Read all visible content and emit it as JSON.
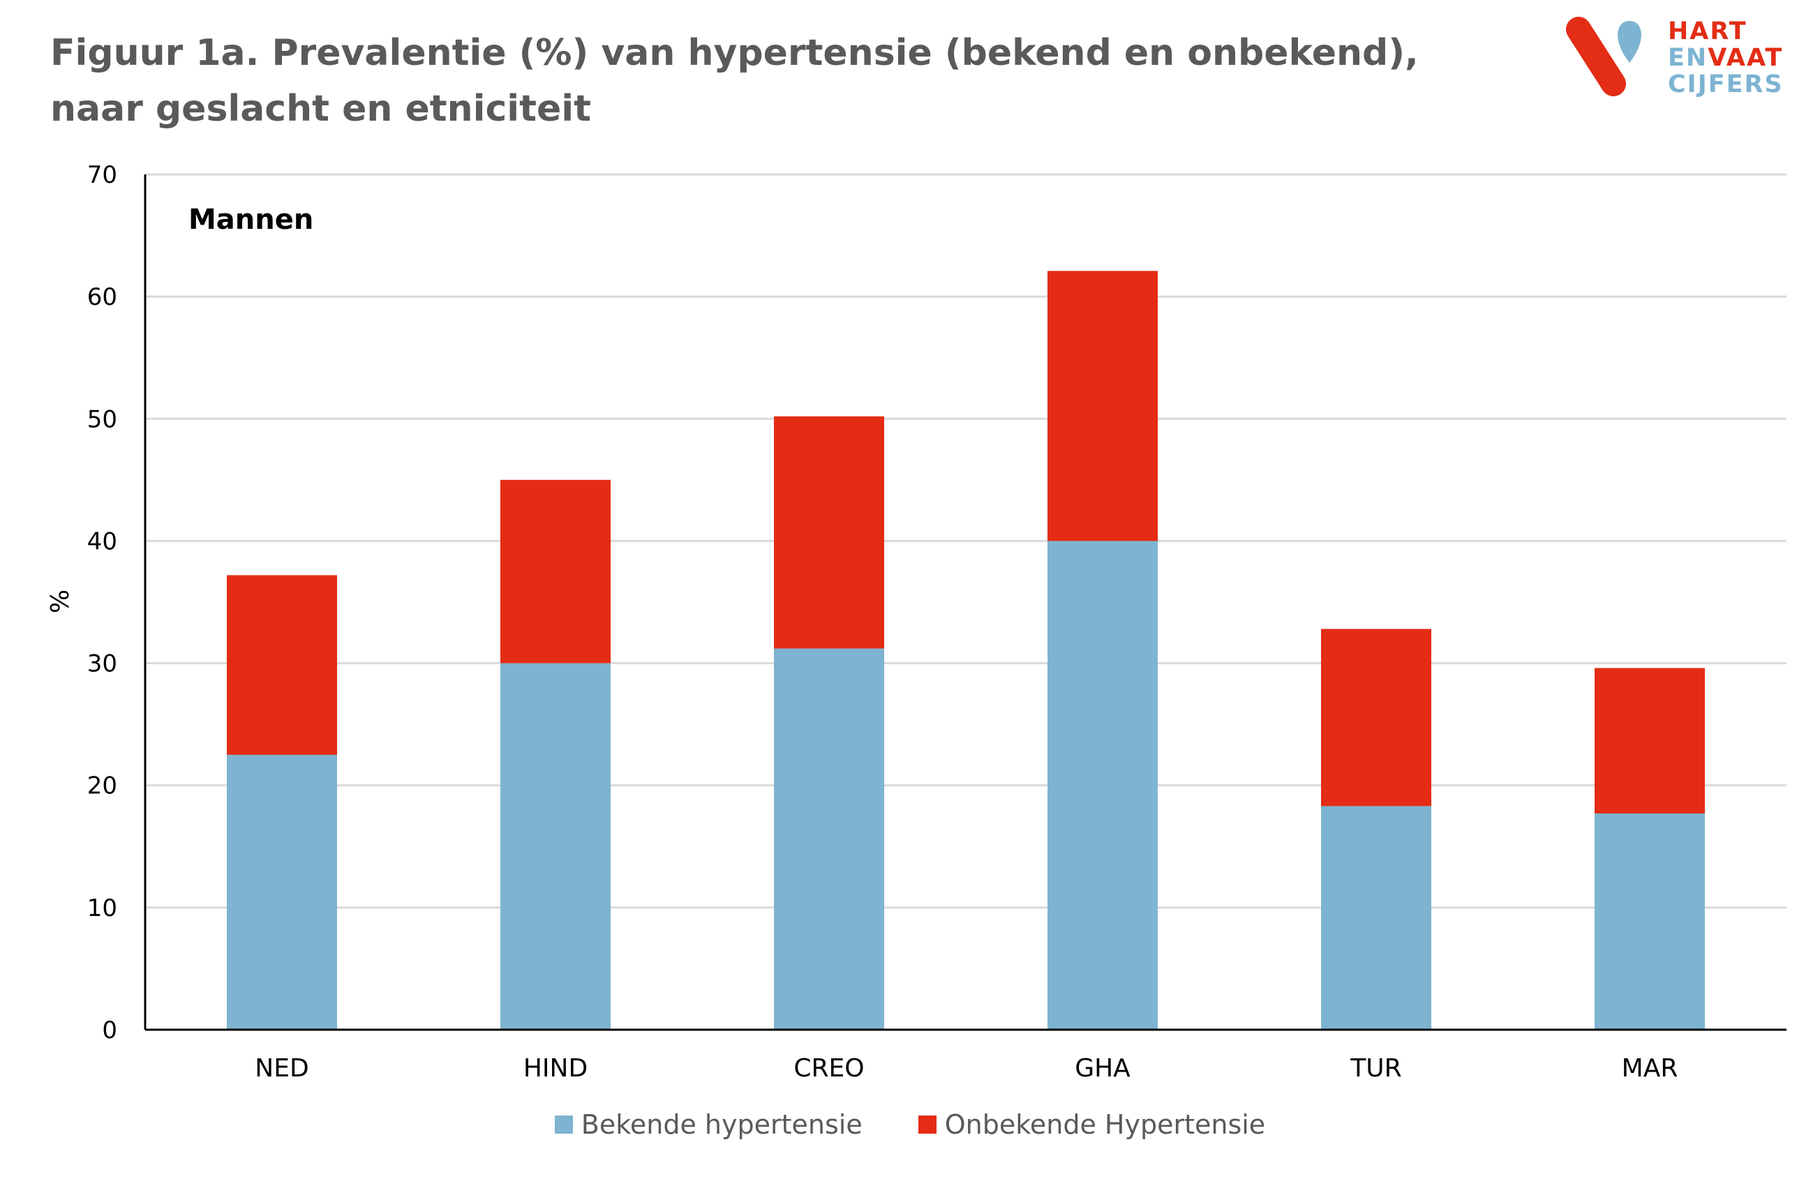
{
  "title": "Figuur 1a. Prevalentie (%) van hypertensie (bekend en onbekend), naar geslacht en etniciteit",
  "logo": {
    "line1": "HART",
    "line2_a": "EN",
    "line2_b": "VAAT",
    "line3": "CIJFERS",
    "icon": "heart-vessel-logo-icon"
  },
  "colors": {
    "known": "#7eb4d1",
    "unknown": "#e42c14",
    "title": "#5a5a5a",
    "grid": "#d9d9d9",
    "axis": "#000000"
  },
  "chart_data": {
    "type": "bar",
    "stacked": true,
    "panel_label": "Mannen",
    "categories": [
      "NED",
      "HIND",
      "CREO",
      "GHA",
      "TUR",
      "MAR"
    ],
    "series": [
      {
        "name": "Bekende hypertensie",
        "values": [
          22.5,
          30,
          31.2,
          40,
          18.3,
          17.7
        ]
      },
      {
        "name": "Onbekende Hypertensie",
        "values": [
          14.7,
          15,
          19,
          22.1,
          14.5,
          11.9
        ]
      }
    ],
    "ylabel": "%",
    "xlabel": "",
    "ylim": [
      0,
      70
    ],
    "yticks": [
      0,
      10,
      20,
      30,
      40,
      50,
      60,
      70
    ],
    "grid": true,
    "legend": "bottom"
  }
}
